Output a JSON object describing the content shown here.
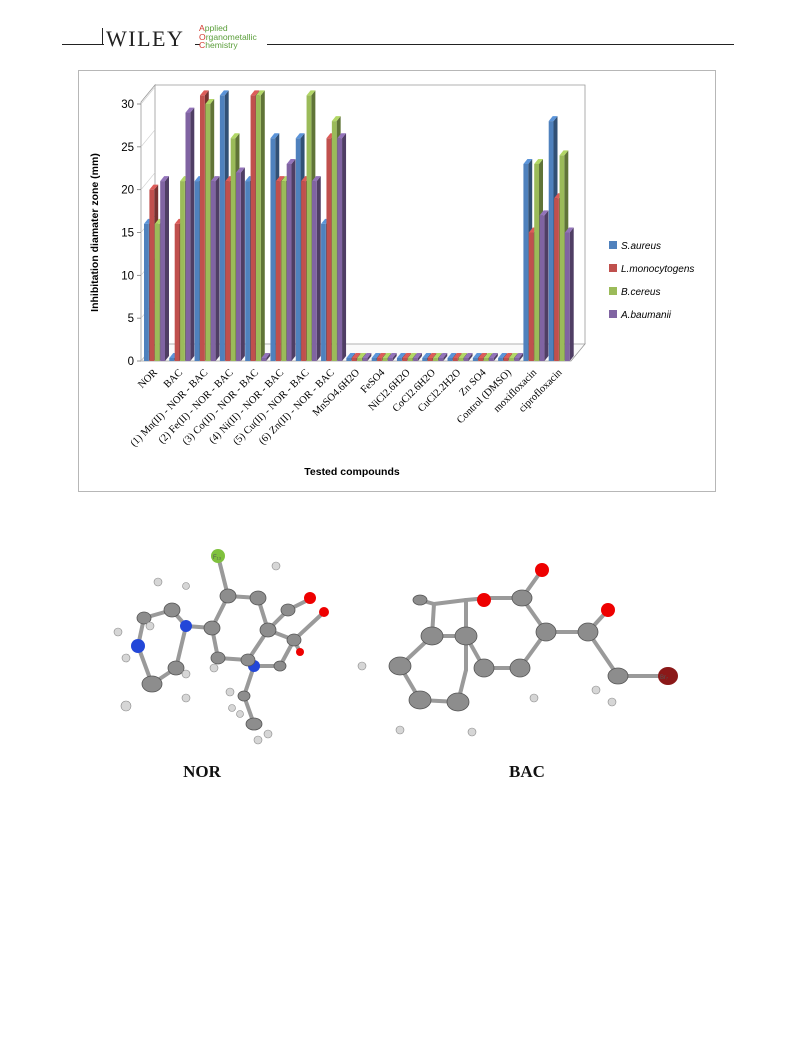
{
  "header": {
    "publisher": "WILEY",
    "journal_lines": [
      {
        "cap": "A",
        "rest": "pplied"
      },
      {
        "cap": "O",
        "rest": "rganometallic"
      },
      {
        "cap": "C",
        "rest": "hemistry"
      }
    ]
  },
  "chart_data": {
    "type": "bar",
    "style": "3d-clustered-column",
    "xlabel": "Tested compounds",
    "ylabel": "Inhibitation diamater zone (mm)",
    "ylim": [
      0,
      30
    ],
    "yticks": [
      0,
      5,
      10,
      15,
      20,
      25,
      30
    ],
    "grid": false,
    "legend_position": "right",
    "categories": [
      "NOR",
      "BAC",
      "(1) Mn(II) - NOR - BAC",
      "(2) Fe(II) - NOR - BAC",
      "(3) Co(II) - NOR - BAC",
      "(4) Ni(II) - NOR - BAC",
      "(5) Cu(II) - NOR - BAC",
      "(6) Zn(II) - NOR - BAC",
      "MnSO4.6H2O",
      "FeSO4",
      "NiCl2.6H2O",
      "CoCl2.6H2O",
      "CuCl2.2H2O",
      "Zn SO4",
      "Control (DMSO)",
      "moxifloxacin",
      "ciprofloxacin"
    ],
    "series": [
      {
        "name": "S.aureus",
        "color": "#4f81bd",
        "values": [
          16,
          0,
          21,
          31,
          21,
          26,
          26,
          16,
          0,
          0,
          0,
          0,
          0,
          0,
          0,
          23,
          28
        ]
      },
      {
        "name": "L.monocytogens",
        "color": "#c0504d",
        "values": [
          20,
          16,
          31,
          21,
          31,
          21,
          21,
          26,
          0,
          0,
          0,
          0,
          0,
          0,
          0,
          15,
          19
        ]
      },
      {
        "name": "B.cereus",
        "color": "#9bbb59",
        "values": [
          16,
          21,
          30,
          26,
          31,
          21,
          31,
          28,
          0,
          0,
          0,
          0,
          0,
          0,
          0,
          23,
          24
        ]
      },
      {
        "name": "A.baumanii",
        "color": "#8064a2",
        "values": [
          21,
          29,
          21,
          22,
          0,
          23,
          21,
          26,
          0,
          0,
          0,
          0,
          0,
          0,
          0,
          17,
          15
        ]
      }
    ]
  },
  "molecules": [
    {
      "title": "NOR"
    },
    {
      "title": "BAC"
    }
  ]
}
